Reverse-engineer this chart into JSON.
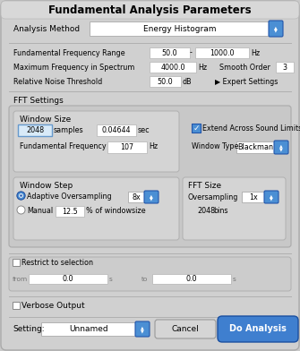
{
  "title": "Fundamental Analysis Parameters",
  "bg_color": "#c9c9c9",
  "title_fontsize": 8.5,
  "body_fontsize": 6.5,
  "small_fontsize": 5.8,
  "fields": {
    "analysis_method": "Energy Histogram",
    "freq_range_low": "50.0",
    "freq_range_high": "1000.0",
    "max_freq": "4000.0",
    "smooth_order": "3",
    "noise_threshold": "50.0",
    "window_size_samples": "2048",
    "window_size_sec": "0.04644",
    "fund_freq": "107",
    "window_type": "Blackman",
    "oversampling_window": "8x",
    "manual_pct": "12.5",
    "fft_oversampling": "1x",
    "fft_bins": "2048",
    "setting": "Unnamed"
  }
}
